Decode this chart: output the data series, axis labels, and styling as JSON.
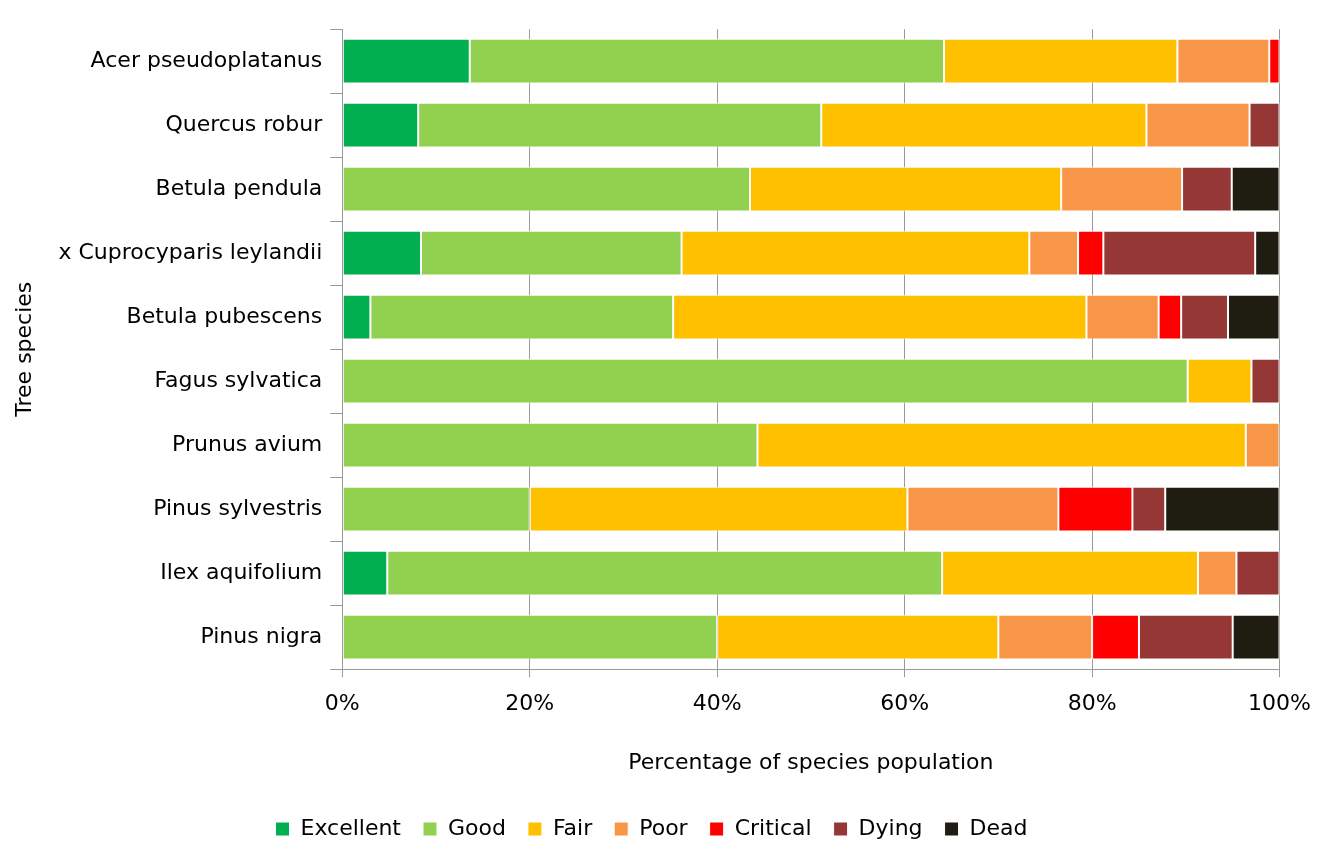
{
  "chart_data": {
    "type": "bar",
    "orientation": "horizontal",
    "stacked": true,
    "xlabel": "Percentage of species population",
    "ylabel": "Tree species",
    "categories": [
      "Acer pseudoplatanus",
      "Quercus robur",
      "Betula pendula",
      "x Cuprocyparis leylandii",
      "Betula pubescens",
      "Fagus sylvatica",
      "Prunus avium",
      "Pinus sylvestris",
      "Ilex aquifolium",
      "Pinus nigra"
    ],
    "series": [
      {
        "name": "Excellent",
        "color": "#00b050",
        "values": [
          13.6,
          8.1,
          null,
          8.4,
          3.0,
          null,
          null,
          null,
          4.8,
          null
        ]
      },
      {
        "name": "Good",
        "color": "#92d050",
        "values": [
          50.6,
          43.0,
          43.5,
          27.8,
          32.3,
          90.2,
          44.3,
          20.0,
          59.2,
          40.0
        ]
      },
      {
        "name": "Fair",
        "color": "#ffc000",
        "values": [
          24.9,
          34.7,
          33.2,
          37.1,
          44.1,
          6.8,
          52.1,
          40.3,
          27.3,
          30.0
        ]
      },
      {
        "name": "Poor",
        "color": "#f79646",
        "values": [
          9.8,
          11.0,
          12.9,
          5.2,
          7.7,
          null,
          3.6,
          16.1,
          4.1,
          10.0
        ]
      },
      {
        "name": "Critical",
        "color": "#ff0000",
        "values": [
          1.1,
          null,
          null,
          2.7,
          2.4,
          null,
          null,
          7.9,
          null,
          5.0
        ]
      },
      {
        "name": "Dying",
        "color": "#953735",
        "values": [
          null,
          3.2,
          5.3,
          16.2,
          5.0,
          3.0,
          null,
          3.5,
          4.6,
          10.0
        ]
      },
      {
        "name": "Dead",
        "color": "#1f1c12",
        "values": [
          null,
          null,
          5.1,
          2.6,
          5.5,
          null,
          null,
          12.2,
          null,
          5.0
        ]
      }
    ],
    "xlim": [
      0,
      100
    ],
    "xticks": [
      {
        "value": 0,
        "label": "0%"
      },
      {
        "value": 20,
        "label": "20%"
      },
      {
        "value": 40,
        "label": "40%"
      },
      {
        "value": 60,
        "label": "60%"
      },
      {
        "value": 80,
        "label": "80%"
      },
      {
        "value": 100,
        "label": "100%"
      }
    ],
    "grid": "x",
    "legend": "bottom"
  }
}
